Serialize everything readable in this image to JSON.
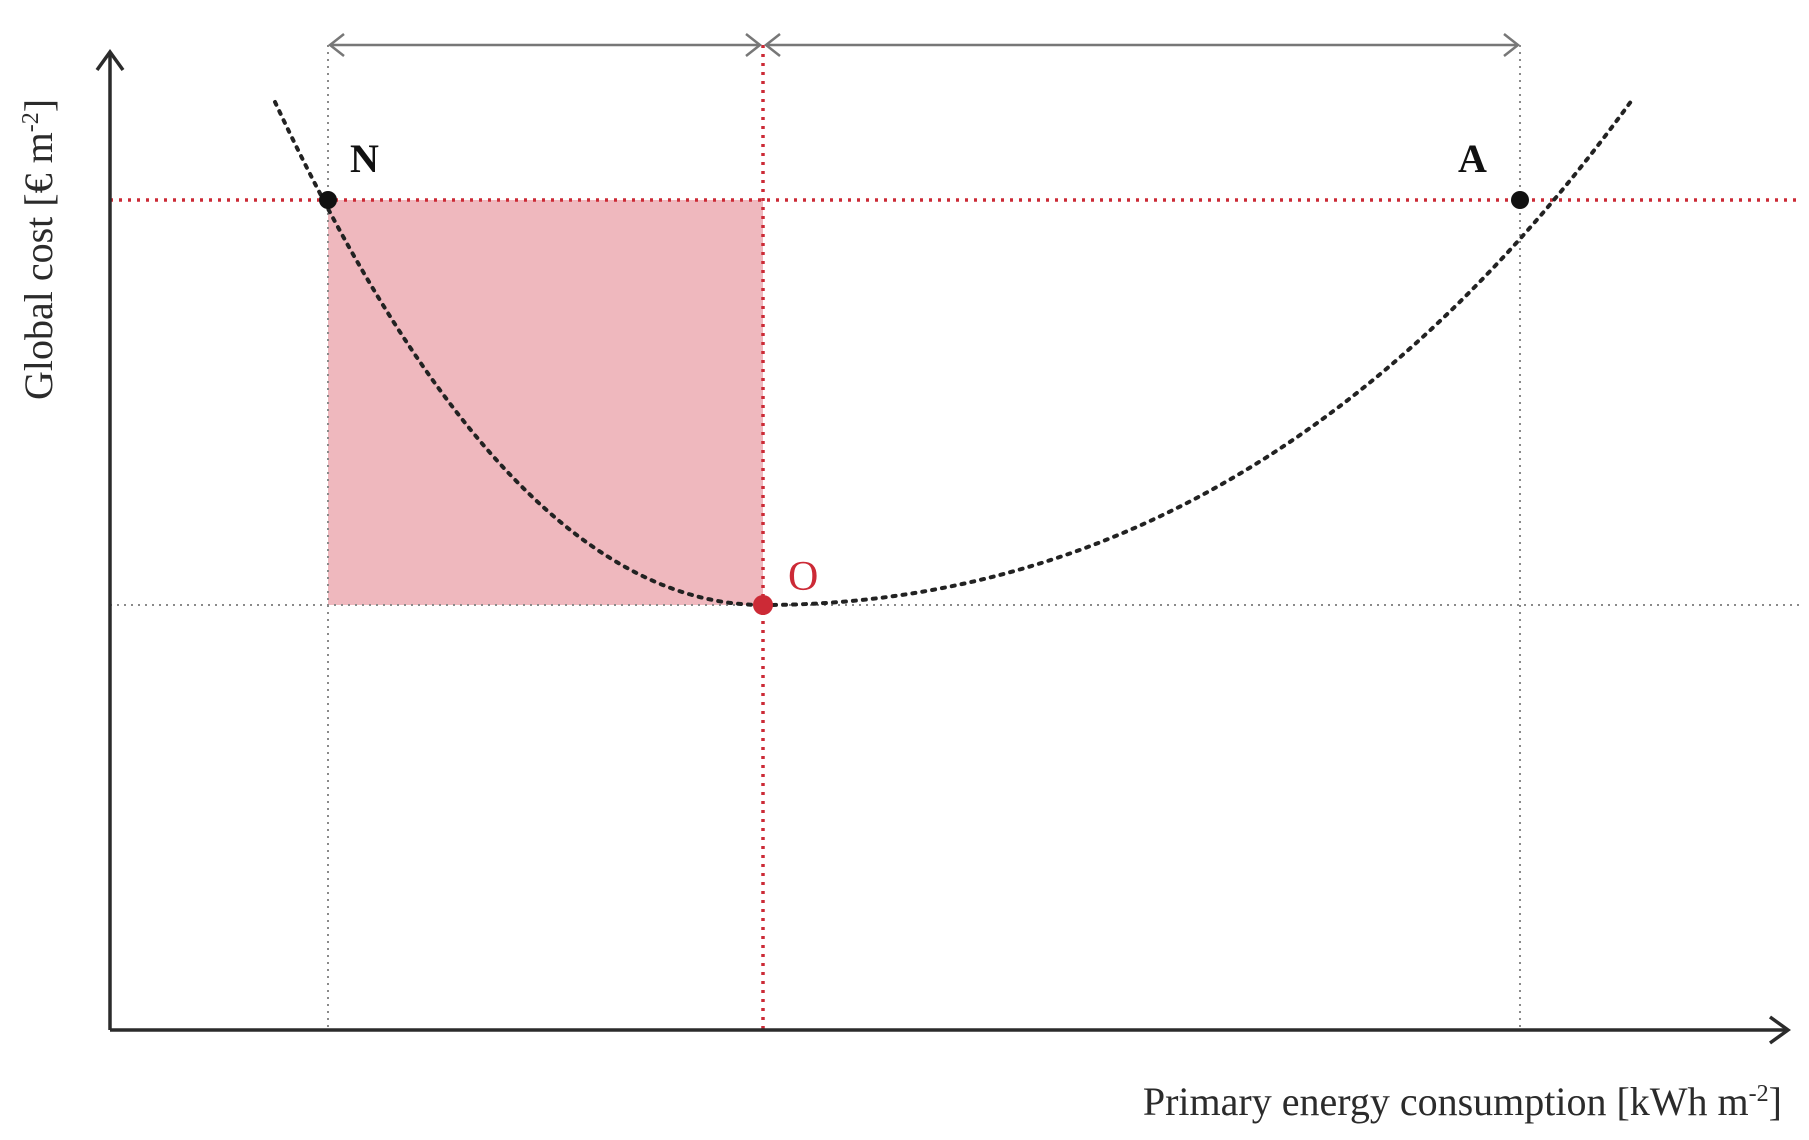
{
  "axes": {
    "y_label": "Global cost [€ m",
    "y_label_sup": "-2",
    "y_label_close": "]",
    "x_label": "Primary energy consumption [kWh m",
    "x_label_sup": "-2",
    "x_label_close": "]"
  },
  "points": {
    "n_label": "N",
    "a_label": "A",
    "o_label": "O"
  },
  "colors": {
    "axis": "#2b2b2b",
    "curve": "#222222",
    "accent_red": "#cc2a36",
    "shade": "#e89aa2",
    "guide_gray": "#8a8a8a"
  }
}
